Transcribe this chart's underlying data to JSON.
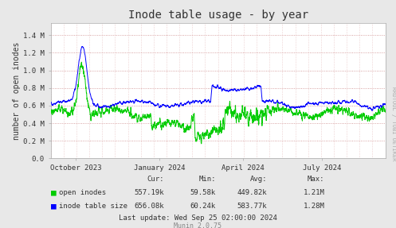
{
  "title": "Inode table usage - by year",
  "ylabel": "number of open inodes",
  "background_color": "#e8e8e8",
  "plot_bg_color": "#ffffff",
  "ylim": [
    0,
    1540000
  ],
  "yticks": [
    0,
    200000,
    400000,
    600000,
    800000,
    1000000,
    1200000,
    1400000
  ],
  "ytick_labels": [
    "0.0",
    "0.2 M",
    "0.4 M",
    "0.6 M",
    "0.8 M",
    "1.0 M",
    "1.2 M",
    "1.4 M"
  ],
  "line_green": "#00cc00",
  "line_blue": "#0000ff",
  "legend": [
    "open inodes",
    "inode table size"
  ],
  "cur_green": "557.19k",
  "min_green": "59.58k",
  "avg_green": "449.82k",
  "max_green": "1.21M",
  "cur_blue": "656.08k",
  "min_blue": "60.24k",
  "avg_blue": "583.77k",
  "max_blue": "1.28M",
  "last_update": "Last update: Wed Sep 25 02:00:00 2024",
  "munin_version": "Munin 2.0.75",
  "rrdtool_label": "RRDTOOL / TOBI OETIKER",
  "xtick_labels": [
    "October 2023",
    "January 2024",
    "April 2024",
    "July 2024"
  ],
  "xtick_positions": [
    0.075,
    0.325,
    0.575,
    0.81
  ]
}
